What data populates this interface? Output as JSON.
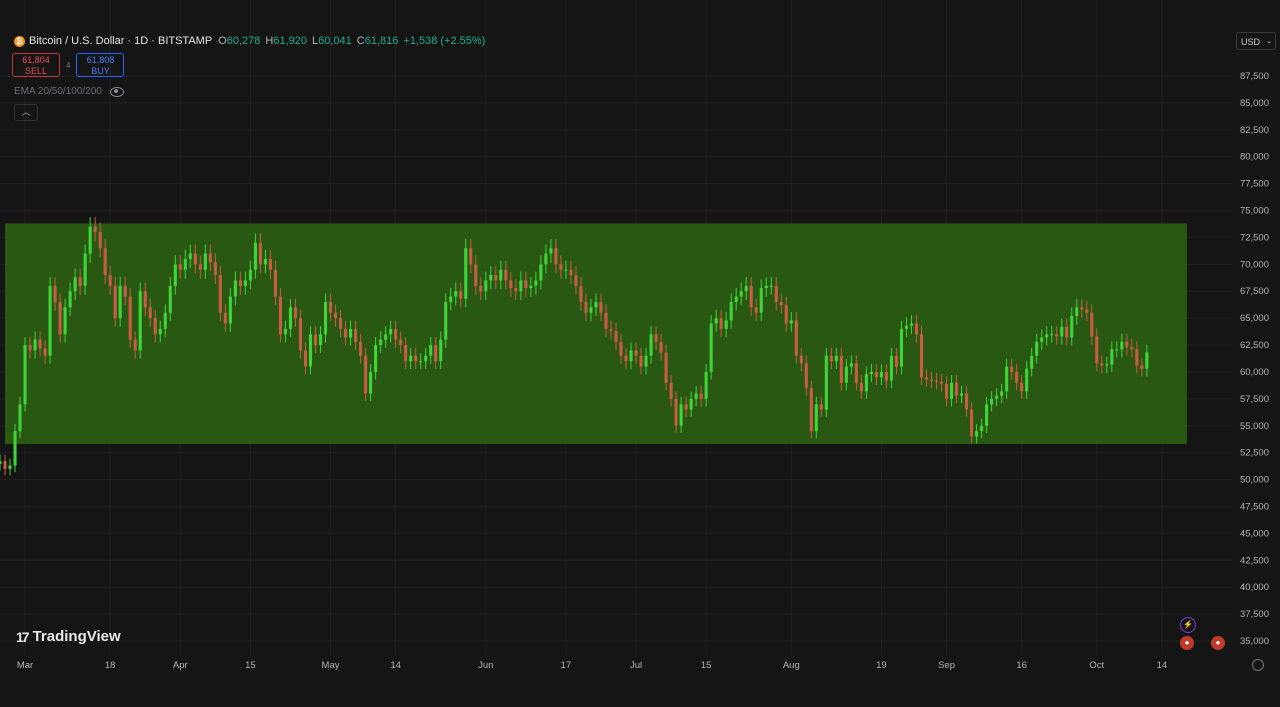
{
  "header": {
    "symbol": "Bitcoin / U.S. Dollar · 1D · BITSTAMP",
    "coin_glyph": "₿",
    "open_label": "O",
    "open": "60,278",
    "high_label": "H",
    "high": "61,920",
    "low_label": "L",
    "low": "60,041",
    "close_label": "C",
    "close": "61,816",
    "change": "+1,538 (+2.55%)"
  },
  "trade": {
    "sell_price": "61,804",
    "sell_label": "SELL",
    "spread": "4",
    "buy_price": "61,808",
    "buy_label": "BUY"
  },
  "indicator": {
    "label": "EMA 20/50/100/200",
    "icon": "eye-icon"
  },
  "collapse_icon": "chevron-up-icon",
  "currency": "USD",
  "brand": {
    "name": "TradingView",
    "mark": "17"
  },
  "colors": {
    "background": "#151515",
    "up": "#3fd43a",
    "down": "#c95c43",
    "range_box": "#2a5e12",
    "grid": "#202020",
    "text": "#b2b5be"
  },
  "chart_data": {
    "type": "candlestick",
    "y_scale": "linear",
    "y_range": [
      33500,
      90000
    ],
    "y_ticks": [
      35000,
      37500,
      40000,
      42500,
      45000,
      47500,
      50000,
      52500,
      55000,
      57500,
      60000,
      62500,
      65000,
      67500,
      70000,
      72500,
      75000,
      77500,
      80000,
      82500,
      85000,
      87500
    ],
    "y_tick_labels": [
      "35,000",
      "37,500",
      "40,000",
      "42,500",
      "45,000",
      "47,500",
      "50,000",
      "52,500",
      "55,000",
      "57,500",
      "60,000",
      "62,500",
      "65,000",
      "67,500",
      "70,000",
      "72,500",
      "75,000",
      "77,500",
      "80,000",
      "82,500",
      "85,000",
      "87,500"
    ],
    "x_labels": [
      {
        "date": "2024-03-01",
        "label": "Mar"
      },
      {
        "date": "2024-03-18",
        "label": "18"
      },
      {
        "date": "2024-04-01",
        "label": "Apr"
      },
      {
        "date": "2024-04-15",
        "label": "15"
      },
      {
        "date": "2024-05-01",
        "label": "May"
      },
      {
        "date": "2024-05-14",
        "label": "14"
      },
      {
        "date": "2024-06-01",
        "label": "Jun"
      },
      {
        "date": "2024-06-17",
        "label": "17"
      },
      {
        "date": "2024-07-01",
        "label": "Jul"
      },
      {
        "date": "2024-07-15",
        "label": "15"
      },
      {
        "date": "2024-08-01",
        "label": "Aug"
      },
      {
        "date": "2024-08-19",
        "label": "19"
      },
      {
        "date": "2024-09-01",
        "label": "Sep"
      },
      {
        "date": "2024-09-16",
        "label": "16"
      },
      {
        "date": "2024-10-01",
        "label": "Oct"
      },
      {
        "date": "2024-10-14",
        "label": "14"
      }
    ],
    "x_range": [
      "2024-02-25",
      "2024-10-28"
    ],
    "range_box": {
      "from": "2024-02-26",
      "to": "2024-10-19",
      "low": 53300,
      "high": 73800
    },
    "series": [
      {
        "date": "2024-02-25",
        "close": 51700
      },
      {
        "date": "2024-02-26",
        "close": 51000
      },
      {
        "date": "2024-02-27",
        "close": 51300
      },
      {
        "date": "2024-02-28",
        "close": 54500
      },
      {
        "date": "2024-02-29",
        "close": 57000
      },
      {
        "date": "2024-03-01",
        "close": 62500
      },
      {
        "date": "2024-03-02",
        "close": 62000
      },
      {
        "date": "2024-03-03",
        "close": 63000
      },
      {
        "date": "2024-03-04",
        "close": 62200
      },
      {
        "date": "2024-03-05",
        "close": 61500
      },
      {
        "date": "2024-03-06",
        "close": 68000
      },
      {
        "date": "2024-03-07",
        "close": 66500
      },
      {
        "date": "2024-03-08",
        "close": 63500
      },
      {
        "date": "2024-03-09",
        "close": 66000
      },
      {
        "date": "2024-03-10",
        "close": 67500
      },
      {
        "date": "2024-03-11",
        "close": 68800
      },
      {
        "date": "2024-03-12",
        "close": 68000
      },
      {
        "date": "2024-03-13",
        "close": 71000
      },
      {
        "date": "2024-03-14",
        "close": 73500
      },
      {
        "date": "2024-03-15",
        "close": 73000
      },
      {
        "date": "2024-03-16",
        "close": 71500
      },
      {
        "date": "2024-03-17",
        "close": 69000
      },
      {
        "date": "2024-03-18",
        "close": 68000
      },
      {
        "date": "2024-03-19",
        "close": 65000
      },
      {
        "date": "2024-03-20",
        "close": 68000
      },
      {
        "date": "2024-03-21",
        "close": 67000
      },
      {
        "date": "2024-03-22",
        "close": 63000
      },
      {
        "date": "2024-03-23",
        "close": 62000
      },
      {
        "date": "2024-03-24",
        "close": 67500
      },
      {
        "date": "2024-03-25",
        "close": 66000
      },
      {
        "date": "2024-03-26",
        "close": 65000
      },
      {
        "date": "2024-03-27",
        "close": 63500
      },
      {
        "date": "2024-03-28",
        "close": 64000
      },
      {
        "date": "2024-03-29",
        "close": 65500
      },
      {
        "date": "2024-03-30",
        "close": 68000
      },
      {
        "date": "2024-03-31",
        "close": 70000
      },
      {
        "date": "2024-04-01",
        "close": 69500
      },
      {
        "date": "2024-04-02",
        "close": 70500
      },
      {
        "date": "2024-04-03",
        "close": 71000
      },
      {
        "date": "2024-04-04",
        "close": 70000
      },
      {
        "date": "2024-04-05",
        "close": 69500
      },
      {
        "date": "2024-04-06",
        "close": 71000
      },
      {
        "date": "2024-04-07",
        "close": 70200
      },
      {
        "date": "2024-04-08",
        "close": 69000
      },
      {
        "date": "2024-04-09",
        "close": 65500
      },
      {
        "date": "2024-04-10",
        "close": 64500
      },
      {
        "date": "2024-04-11",
        "close": 67000
      },
      {
        "date": "2024-04-12",
        "close": 68500
      },
      {
        "date": "2024-04-13",
        "close": 68000
      },
      {
        "date": "2024-04-14",
        "close": 68500
      },
      {
        "date": "2024-04-15",
        "close": 69500
      },
      {
        "date": "2024-04-16",
        "close": 72000
      },
      {
        "date": "2024-04-17",
        "close": 70000
      },
      {
        "date": "2024-04-18",
        "close": 70500
      },
      {
        "date": "2024-04-19",
        "close": 69500
      },
      {
        "date": "2024-04-20",
        "close": 67000
      },
      {
        "date": "2024-04-21",
        "close": 63500
      },
      {
        "date": "2024-04-22",
        "close": 64000
      },
      {
        "date": "2024-04-23",
        "close": 66000
      },
      {
        "date": "2024-04-24",
        "close": 65000
      },
      {
        "date": "2024-04-25",
        "close": 62000
      },
      {
        "date": "2024-04-26",
        "close": 60500
      },
      {
        "date": "2024-04-27",
        "close": 63500
      },
      {
        "date": "2024-04-28",
        "close": 62500
      },
      {
        "date": "2024-04-29",
        "close": 63500
      },
      {
        "date": "2024-04-30",
        "close": 66500
      },
      {
        "date": "2024-05-01",
        "close": 65500
      },
      {
        "date": "2024-05-02",
        "close": 65000
      },
      {
        "date": "2024-05-03",
        "close": 64000
      },
      {
        "date": "2024-05-04",
        "close": 63200
      },
      {
        "date": "2024-05-05",
        "close": 64000
      },
      {
        "date": "2024-05-06",
        "close": 62800
      },
      {
        "date": "2024-05-07",
        "close": 61500
      },
      {
        "date": "2024-05-08",
        "close": 58000
      },
      {
        "date": "2024-05-09",
        "close": 60000
      },
      {
        "date": "2024-05-10",
        "close": 62500
      },
      {
        "date": "2024-05-11",
        "close": 63000
      },
      {
        "date": "2024-05-12",
        "close": 63500
      },
      {
        "date": "2024-05-13",
        "close": 64000
      },
      {
        "date": "2024-05-14",
        "close": 63000
      },
      {
        "date": "2024-05-15",
        "close": 62500
      },
      {
        "date": "2024-05-16",
        "close": 61000
      },
      {
        "date": "2024-05-17",
        "close": 61500
      },
      {
        "date": "2024-05-18",
        "close": 61000
      },
      {
        "date": "2024-05-19",
        "close": 61000
      },
      {
        "date": "2024-05-20",
        "close": 61500
      },
      {
        "date": "2024-05-21",
        "close": 62500
      },
      {
        "date": "2024-05-22",
        "close": 61000
      },
      {
        "date": "2024-05-23",
        "close": 63000
      },
      {
        "date": "2024-05-24",
        "close": 66500
      },
      {
        "date": "2024-05-25",
        "close": 67000
      },
      {
        "date": "2024-05-26",
        "close": 67500
      },
      {
        "date": "2024-05-27",
        "close": 66800
      },
      {
        "date": "2024-05-28",
        "close": 71500
      },
      {
        "date": "2024-05-29",
        "close": 70000
      },
      {
        "date": "2024-05-30",
        "close": 68000
      },
      {
        "date": "2024-05-31",
        "close": 67500
      },
      {
        "date": "2024-06-01",
        "close": 68500
      },
      {
        "date": "2024-06-02",
        "close": 69000
      },
      {
        "date": "2024-06-03",
        "close": 68500
      },
      {
        "date": "2024-06-04",
        "close": 69500
      },
      {
        "date": "2024-06-05",
        "close": 68500
      },
      {
        "date": "2024-06-06",
        "close": 67800
      },
      {
        "date": "2024-06-07",
        "close": 67500
      },
      {
        "date": "2024-06-08",
        "close": 68500
      },
      {
        "date": "2024-06-09",
        "close": 67800
      },
      {
        "date": "2024-06-10",
        "close": 68000
      },
      {
        "date": "2024-06-11",
        "close": 68500
      },
      {
        "date": "2024-06-12",
        "close": 70000
      },
      {
        "date": "2024-06-13",
        "close": 71000
      },
      {
        "date": "2024-06-14",
        "close": 71500
      },
      {
        "date": "2024-06-15",
        "close": 70000
      },
      {
        "date": "2024-06-16",
        "close": 69500
      },
      {
        "date": "2024-06-17",
        "close": 69500
      },
      {
        "date": "2024-06-18",
        "close": 69000
      },
      {
        "date": "2024-06-19",
        "close": 68000
      },
      {
        "date": "2024-06-20",
        "close": 66500
      },
      {
        "date": "2024-06-21",
        "close": 65500
      },
      {
        "date": "2024-06-22",
        "close": 66000
      },
      {
        "date": "2024-06-23",
        "close": 66500
      },
      {
        "date": "2024-06-24",
        "close": 65500
      },
      {
        "date": "2024-06-25",
        "close": 64000
      },
      {
        "date": "2024-06-26",
        "close": 63800
      },
      {
        "date": "2024-06-27",
        "close": 62800
      },
      {
        "date": "2024-06-28",
        "close": 61500
      },
      {
        "date": "2024-06-29",
        "close": 61000
      },
      {
        "date": "2024-06-30",
        "close": 62000
      },
      {
        "date": "2024-07-01",
        "close": 61500
      },
      {
        "date": "2024-07-02",
        "close": 60500
      },
      {
        "date": "2024-07-03",
        "close": 61500
      },
      {
        "date": "2024-07-04",
        "close": 63500
      },
      {
        "date": "2024-07-05",
        "close": 62800
      },
      {
        "date": "2024-07-06",
        "close": 61800
      },
      {
        "date": "2024-07-07",
        "close": 59000
      },
      {
        "date": "2024-07-08",
        "close": 57500
      },
      {
        "date": "2024-07-09",
        "close": 55000
      },
      {
        "date": "2024-07-10",
        "close": 57000
      },
      {
        "date": "2024-07-11",
        "close": 56500
      },
      {
        "date": "2024-07-12",
        "close": 57500
      },
      {
        "date": "2024-07-13",
        "close": 58000
      },
      {
        "date": "2024-07-14",
        "close": 57500
      },
      {
        "date": "2024-07-15",
        "close": 60000
      },
      {
        "date": "2024-07-16",
        "close": 64500
      },
      {
        "date": "2024-07-17",
        "close": 65000
      },
      {
        "date": "2024-07-18",
        "close": 64000
      },
      {
        "date": "2024-07-19",
        "close": 64800
      },
      {
        "date": "2024-07-20",
        "close": 66500
      },
      {
        "date": "2024-07-21",
        "close": 67000
      },
      {
        "date": "2024-07-22",
        "close": 67500
      },
      {
        "date": "2024-07-23",
        "close": 68000
      },
      {
        "date": "2024-07-24",
        "close": 66000
      },
      {
        "date": "2024-07-25",
        "close": 65500
      },
      {
        "date": "2024-07-26",
        "close": 67800
      },
      {
        "date": "2024-07-27",
        "close": 68000
      },
      {
        "date": "2024-07-28",
        "close": 68000
      },
      {
        "date": "2024-07-29",
        "close": 66500
      },
      {
        "date": "2024-07-30",
        "close": 66200
      },
      {
        "date": "2024-07-31",
        "close": 64500
      },
      {
        "date": "2024-08-01",
        "close": 64800
      },
      {
        "date": "2024-08-02",
        "close": 61500
      },
      {
        "date": "2024-08-03",
        "close": 60800
      },
      {
        "date": "2024-08-04",
        "close": 58500
      },
      {
        "date": "2024-08-05",
        "close": 54500
      },
      {
        "date": "2024-08-06",
        "close": 57000
      },
      {
        "date": "2024-08-07",
        "close": 56500
      },
      {
        "date": "2024-08-08",
        "close": 61500
      },
      {
        "date": "2024-08-09",
        "close": 61000
      },
      {
        "date": "2024-08-10",
        "close": 61500
      },
      {
        "date": "2024-08-11",
        "close": 59000
      },
      {
        "date": "2024-08-12",
        "close": 60500
      },
      {
        "date": "2024-08-13",
        "close": 60800
      },
      {
        "date": "2024-08-14",
        "close": 59000
      },
      {
        "date": "2024-08-15",
        "close": 58200
      },
      {
        "date": "2024-08-16",
        "close": 59800
      },
      {
        "date": "2024-08-17",
        "close": 60000
      },
      {
        "date": "2024-08-18",
        "close": 59500
      },
      {
        "date": "2024-08-19",
        "close": 60000
      },
      {
        "date": "2024-08-20",
        "close": 59200
      },
      {
        "date": "2024-08-21",
        "close": 61500
      },
      {
        "date": "2024-08-22",
        "close": 60500
      },
      {
        "date": "2024-08-23",
        "close": 64000
      },
      {
        "date": "2024-08-24",
        "close": 64300
      },
      {
        "date": "2024-08-25",
        "close": 64500
      },
      {
        "date": "2024-08-26",
        "close": 63500
      },
      {
        "date": "2024-08-27",
        "close": 59500
      },
      {
        "date": "2024-08-28",
        "close": 59300
      },
      {
        "date": "2024-08-29",
        "close": 59200
      },
      {
        "date": "2024-08-30",
        "close": 59100
      },
      {
        "date": "2024-08-31",
        "close": 58900
      },
      {
        "date": "2024-09-01",
        "close": 57500
      },
      {
        "date": "2024-09-02",
        "close": 59000
      },
      {
        "date": "2024-09-03",
        "close": 57800
      },
      {
        "date": "2024-09-04",
        "close": 58000
      },
      {
        "date": "2024-09-05",
        "close": 56500
      },
      {
        "date": "2024-09-06",
        "close": 54000
      },
      {
        "date": "2024-09-07",
        "close": 54500
      },
      {
        "date": "2024-09-08",
        "close": 55000
      },
      {
        "date": "2024-09-09",
        "close": 57000
      },
      {
        "date": "2024-09-10",
        "close": 57500
      },
      {
        "date": "2024-09-11",
        "close": 57800
      },
      {
        "date": "2024-09-12",
        "close": 58200
      },
      {
        "date": "2024-09-13",
        "close": 60500
      },
      {
        "date": "2024-09-14",
        "close": 60000
      },
      {
        "date": "2024-09-15",
        "close": 59000
      },
      {
        "date": "2024-09-16",
        "close": 58200
      },
      {
        "date": "2024-09-17",
        "close": 60300
      },
      {
        "date": "2024-09-18",
        "close": 61500
      },
      {
        "date": "2024-09-19",
        "close": 62800
      },
      {
        "date": "2024-09-20",
        "close": 63200
      },
      {
        "date": "2024-09-21",
        "close": 63500
      },
      {
        "date": "2024-09-22",
        "close": 63500
      },
      {
        "date": "2024-09-23",
        "close": 63300
      },
      {
        "date": "2024-09-24",
        "close": 64200
      },
      {
        "date": "2024-09-25",
        "close": 63200
      },
      {
        "date": "2024-09-26",
        "close": 65200
      },
      {
        "date": "2024-09-27",
        "close": 66000
      },
      {
        "date": "2024-09-28",
        "close": 65800
      },
      {
        "date": "2024-09-29",
        "close": 65500
      },
      {
        "date": "2024-09-30",
        "close": 63300
      },
      {
        "date": "2024-10-01",
        "close": 60800
      },
      {
        "date": "2024-10-02",
        "close": 60600
      },
      {
        "date": "2024-10-03",
        "close": 60700
      },
      {
        "date": "2024-10-04",
        "close": 62100
      },
      {
        "date": "2024-10-05",
        "close": 62100
      },
      {
        "date": "2024-10-06",
        "close": 62800
      },
      {
        "date": "2024-10-07",
        "close": 62300
      },
      {
        "date": "2024-10-08",
        "close": 62100
      },
      {
        "date": "2024-10-09",
        "close": 60600
      },
      {
        "date": "2024-10-10",
        "close": 60300
      },
      {
        "date": "2024-10-11",
        "close": 61800
      }
    ]
  }
}
